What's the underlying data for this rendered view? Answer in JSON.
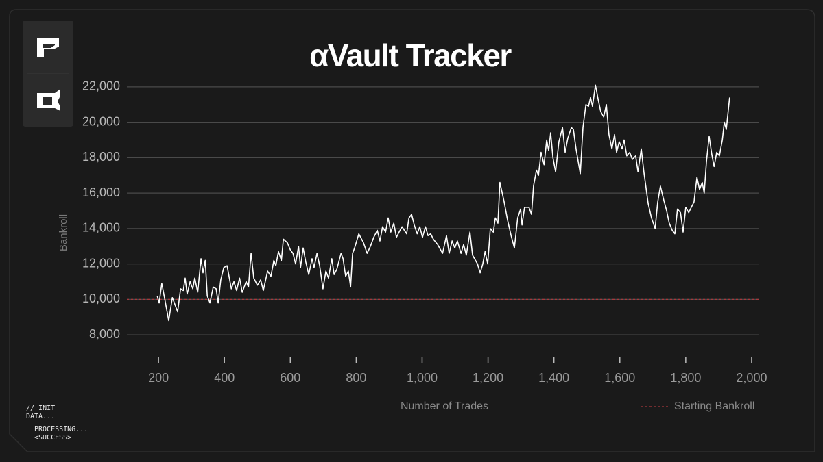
{
  "chart_data": {
    "type": "line",
    "title": "αVault Tracker",
    "x_label": "Number of Trades",
    "y_label": "Bankroll",
    "xlim": [
      104,
      2023
    ],
    "xticks": [
      {
        "value": 200,
        "label": "200"
      },
      {
        "value": 400,
        "label": "400"
      },
      {
        "value": 600,
        "label": "600"
      },
      {
        "value": 800,
        "label": "800"
      },
      {
        "value": 1000,
        "label": "1,000"
      },
      {
        "value": 1200,
        "label": "1,200"
      },
      {
        "value": 1400,
        "label": "1,400"
      },
      {
        "value": 1600,
        "label": "1,600"
      },
      {
        "value": 1800,
        "label": "1,800"
      },
      {
        "value": 2000,
        "label": "2,000"
      }
    ],
    "ylim": [
      7000,
      23000
    ],
    "yticks": [
      {
        "value": 8000,
        "label": "8,000"
      },
      {
        "value": 10000,
        "label": "10,000"
      },
      {
        "value": 12000,
        "label": "12,000"
      },
      {
        "value": 14000,
        "label": "14,000"
      },
      {
        "value": 16000,
        "label": "16,000"
      },
      {
        "value": 18000,
        "label": "18,000"
      },
      {
        "value": 20000,
        "label": "20,000"
      },
      {
        "value": 22000,
        "label": "22,000"
      }
    ],
    "grid": true,
    "color": "#ffffff",
    "reference_line": {
      "value": 10000,
      "label": "Starting Bankroll",
      "color": "#a8383c"
    },
    "x": [
      196,
      202,
      210,
      219,
      231,
      242,
      258,
      267,
      275,
      281,
      287,
      296,
      304,
      310,
      319,
      329,
      335,
      342,
      348,
      356,
      366,
      375,
      381,
      389,
      398,
      408,
      421,
      429,
      437,
      446,
      454,
      466,
      473,
      481,
      489,
      500,
      510,
      518,
      531,
      541,
      550,
      556,
      564,
      573,
      579,
      591,
      600,
      608,
      616,
      625,
      631,
      639,
      647,
      656,
      666,
      672,
      681,
      689,
      699,
      708,
      716,
      726,
      733,
      741,
      754,
      760,
      768,
      776,
      783,
      789,
      795,
      808,
      822,
      833,
      843,
      853,
      864,
      872,
      880,
      889,
      897,
      905,
      914,
      922,
      930,
      939,
      953,
      960,
      968,
      976,
      985,
      993,
      1001,
      1010,
      1018,
      1026,
      1034,
      1047,
      1062,
      1074,
      1082,
      1091,
      1099,
      1107,
      1118,
      1126,
      1134,
      1145,
      1153,
      1168,
      1176,
      1184,
      1191,
      1199,
      1207,
      1216,
      1222,
      1230,
      1236,
      1249,
      1259,
      1270,
      1280,
      1290,
      1299,
      1303,
      1311,
      1324,
      1332,
      1338,
      1347,
      1353,
      1361,
      1370,
      1378,
      1384,
      1390,
      1397,
      1405,
      1415,
      1426,
      1434,
      1442,
      1453,
      1459,
      1467,
      1480,
      1488,
      1497,
      1505,
      1511,
      1517,
      1526,
      1534,
      1542,
      1551,
      1559,
      1567,
      1576,
      1584,
      1590,
      1598,
      1607,
      1613,
      1621,
      1630,
      1638,
      1648,
      1655,
      1665,
      1673,
      1686,
      1696,
      1707,
      1715,
      1723,
      1732,
      1742,
      1750,
      1759,
      1767,
      1775,
      1784,
      1792,
      1800,
      1809,
      1817,
      1825,
      1834,
      1842,
      1850,
      1856,
      1863,
      1871,
      1879,
      1886,
      1894,
      1902,
      1911,
      1917,
      1923,
      1933
    ],
    "values": [
      10200,
      9800,
      10900,
      10000,
      8800,
      10100,
      9300,
      10600,
      10500,
      11200,
      10300,
      11000,
      10600,
      11200,
      10400,
      12300,
      11500,
      12200,
      10200,
      9800,
      10700,
      10600,
      9800,
      11100,
      11800,
      11900,
      10600,
      11000,
      10500,
      11200,
      10400,
      11000,
      10700,
      12600,
      11200,
      10800,
      11100,
      10500,
      11600,
      11300,
      12200,
      11900,
      12700,
      12200,
      13400,
      13200,
      12800,
      12600,
      12000,
      13000,
      11800,
      12900,
      12100,
      11400,
      12300,
      11800,
      12600,
      11900,
      10600,
      11600,
      11200,
      12300,
      11400,
      11700,
      12600,
      12300,
      11300,
      11600,
      10700,
      12600,
      12900,
      13700,
      13200,
      12600,
      13000,
      13500,
      13900,
      13300,
      14100,
      13800,
      14600,
      13800,
      14300,
      13500,
      13800,
      14100,
      13700,
      14600,
      14800,
      14200,
      13700,
      14100,
      13500,
      14100,
      13600,
      13700,
      13400,
      13100,
      12600,
      13600,
      12600,
      13300,
      12900,
      13300,
      12600,
      13100,
      12500,
      13800,
      12500,
      12000,
      11500,
      12000,
      12700,
      12000,
      14000,
      13800,
      14600,
      14300,
      16600,
      15500,
      14500,
      13600,
      12900,
      14600,
      15100,
      14200,
      15200,
      15200,
      14800,
      16400,
      17300,
      17000,
      18300,
      17600,
      19000,
      18400,
      19400,
      18000,
      17200,
      18900,
      19700,
      18300,
      19100,
      19700,
      19600,
      18500,
      17100,
      19700,
      21000,
      20900,
      21400,
      20900,
      22100,
      21300,
      20600,
      20300,
      21000,
      19300,
      18500,
      19300,
      18300,
      18900,
      18500,
      19000,
      18100,
      18300,
      17900,
      18100,
      17200,
      18500,
      17200,
      15400,
      14600,
      14000,
      15500,
      16400,
      15700,
      15000,
      14300,
      13900,
      13700,
      15100,
      14900,
      13800,
      15200,
      14900,
      15200,
      15500,
      16900,
      16200,
      16600,
      16000,
      17800,
      19200,
      18200,
      17500,
      18300,
      18100,
      19000,
      20000,
      19600,
      21400
    ]
  },
  "console": [
    "// INIT",
    "DATA...",
    "PROCESSING...",
    "<SUCCESS>"
  ]
}
